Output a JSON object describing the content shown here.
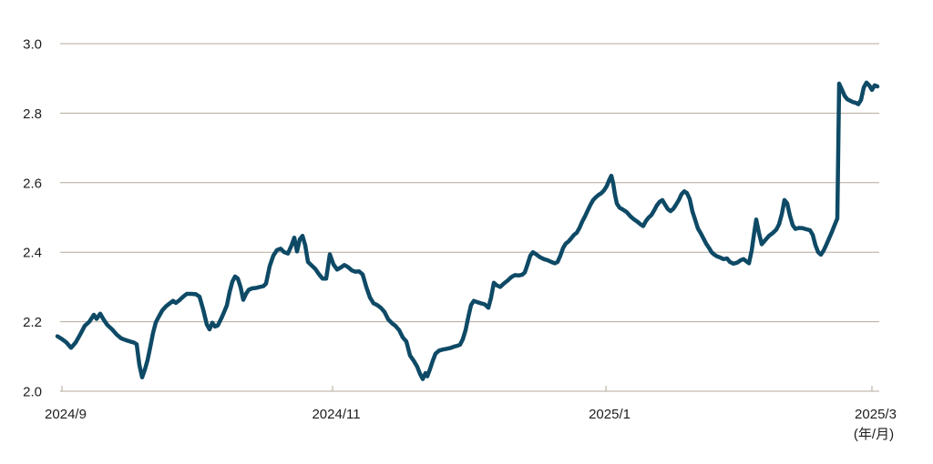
{
  "chart_data": {
    "type": "line",
    "title": "",
    "legend": [],
    "grid": "horizontal",
    "line_color": "#0e4a66",
    "grid_color": "#b5a99b",
    "text_color": "#1d1d1d",
    "background_color": "#ffffff",
    "ylim": [
      2.0,
      3.0
    ],
    "y_ticks": [
      {
        "v": 3.0,
        "label": "3.0"
      },
      {
        "v": 2.8,
        "label": "2.8"
      },
      {
        "v": 2.6,
        "label": "2.6"
      },
      {
        "v": 2.4,
        "label": "2.4"
      },
      {
        "v": 2.2,
        "label": "2.2"
      },
      {
        "v": 2.0,
        "label": "2.0"
      }
    ],
    "x_ticks": [
      {
        "f": 0.0,
        "label": "2024/9"
      },
      {
        "f": 0.3341,
        "label": "2024/11"
      },
      {
        "f": 0.6716,
        "label": "2025/1"
      },
      {
        "f": 1.0,
        "label": "2025/3"
      }
    ],
    "x_axis_note": "(年/月)",
    "points": [
      [
        -0.0056,
        2.158
      ],
      [
        0.0,
        2.15
      ],
      [
        0.0056,
        2.14
      ],
      [
        0.0112,
        2.125
      ],
      [
        0.0169,
        2.14
      ],
      [
        0.0225,
        2.163
      ],
      [
        0.0281,
        2.188
      ],
      [
        0.0337,
        2.2
      ],
      [
        0.0394,
        2.22
      ],
      [
        0.0427,
        2.208
      ],
      [
        0.0472,
        2.223
      ],
      [
        0.0517,
        2.205
      ],
      [
        0.0562,
        2.19
      ],
      [
        0.0619,
        2.178
      ],
      [
        0.0675,
        2.163
      ],
      [
        0.0731,
        2.152
      ],
      [
        0.0787,
        2.147
      ],
      [
        0.0844,
        2.143
      ],
      [
        0.0889,
        2.14
      ],
      [
        0.0922,
        2.135
      ],
      [
        0.0956,
        2.075
      ],
      [
        0.099,
        2.04
      ],
      [
        0.1024,
        2.062
      ],
      [
        0.1057,
        2.09
      ],
      [
        0.1091,
        2.128
      ],
      [
        0.1125,
        2.168
      ],
      [
        0.1159,
        2.198
      ],
      [
        0.1192,
        2.213
      ],
      [
        0.1237,
        2.232
      ],
      [
        0.1282,
        2.244
      ],
      [
        0.1327,
        2.252
      ],
      [
        0.1372,
        2.26
      ],
      [
        0.1406,
        2.254
      ],
      [
        0.1451,
        2.262
      ],
      [
        0.1496,
        2.272
      ],
      [
        0.1541,
        2.28
      ],
      [
        0.1597,
        2.28
      ],
      [
        0.1654,
        2.279
      ],
      [
        0.1699,
        2.272
      ],
      [
        0.1744,
        2.235
      ],
      [
        0.1789,
        2.192
      ],
      [
        0.1822,
        2.178
      ],
      [
        0.1856,
        2.197
      ],
      [
        0.189,
        2.186
      ],
      [
        0.1923,
        2.189
      ],
      [
        0.1968,
        2.21
      ],
      [
        0.2002,
        2.228
      ],
      [
        0.2036,
        2.247
      ],
      [
        0.207,
        2.285
      ],
      [
        0.2103,
        2.315
      ],
      [
        0.2137,
        2.33
      ],
      [
        0.2171,
        2.324
      ],
      [
        0.2205,
        2.3
      ],
      [
        0.2238,
        2.263
      ],
      [
        0.2272,
        2.28
      ],
      [
        0.2306,
        2.292
      ],
      [
        0.2351,
        2.296
      ],
      [
        0.2396,
        2.297
      ],
      [
        0.2441,
        2.3
      ],
      [
        0.2486,
        2.302
      ],
      [
        0.252,
        2.31
      ],
      [
        0.2565,
        2.36
      ],
      [
        0.261,
        2.39
      ],
      [
        0.2655,
        2.406
      ],
      [
        0.27,
        2.41
      ],
      [
        0.2745,
        2.4
      ],
      [
        0.279,
        2.396
      ],
      [
        0.2835,
        2.42
      ],
      [
        0.2868,
        2.442
      ],
      [
        0.2902,
        2.402
      ],
      [
        0.2936,
        2.437
      ],
      [
        0.297,
        2.447
      ],
      [
        0.3003,
        2.42
      ],
      [
        0.3037,
        2.372
      ],
      [
        0.3082,
        2.362
      ],
      [
        0.3127,
        2.352
      ],
      [
        0.3172,
        2.337
      ],
      [
        0.3217,
        2.324
      ],
      [
        0.3262,
        2.324
      ],
      [
        0.3307,
        2.394
      ],
      [
        0.3352,
        2.365
      ],
      [
        0.3397,
        2.35
      ],
      [
        0.3442,
        2.356
      ],
      [
        0.3487,
        2.363
      ],
      [
        0.3532,
        2.357
      ],
      [
        0.3577,
        2.348
      ],
      [
        0.3622,
        2.344
      ],
      [
        0.3667,
        2.345
      ],
      [
        0.3712,
        2.336
      ],
      [
        0.3757,
        2.3
      ],
      [
        0.3802,
        2.27
      ],
      [
        0.3847,
        2.253
      ],
      [
        0.3892,
        2.248
      ],
      [
        0.3937,
        2.24
      ],
      [
        0.3982,
        2.228
      ],
      [
        0.4027,
        2.207
      ],
      [
        0.4072,
        2.196
      ],
      [
        0.4117,
        2.188
      ],
      [
        0.4162,
        2.176
      ],
      [
        0.4207,
        2.155
      ],
      [
        0.4252,
        2.143
      ],
      [
        0.4297,
        2.103
      ],
      [
        0.4342,
        2.088
      ],
      [
        0.4387,
        2.07
      ],
      [
        0.4421,
        2.05
      ],
      [
        0.4454,
        2.035
      ],
      [
        0.4488,
        2.052
      ],
      [
        0.4511,
        2.043
      ],
      [
        0.4545,
        2.065
      ],
      [
        0.4578,
        2.088
      ],
      [
        0.4612,
        2.108
      ],
      [
        0.4657,
        2.117
      ],
      [
        0.4702,
        2.12
      ],
      [
        0.4747,
        2.122
      ],
      [
        0.4792,
        2.124
      ],
      [
        0.4837,
        2.128
      ],
      [
        0.4882,
        2.131
      ],
      [
        0.4916,
        2.134
      ],
      [
        0.4949,
        2.15
      ],
      [
        0.4983,
        2.176
      ],
      [
        0.5017,
        2.214
      ],
      [
        0.5051,
        2.248
      ],
      [
        0.5084,
        2.26
      ],
      [
        0.5129,
        2.256
      ],
      [
        0.5174,
        2.253
      ],
      [
        0.5219,
        2.25
      ],
      [
        0.5264,
        2.24
      ],
      [
        0.5298,
        2.27
      ],
      [
        0.5332,
        2.312
      ],
      [
        0.5366,
        2.305
      ],
      [
        0.5411,
        2.3
      ],
      [
        0.5456,
        2.31
      ],
      [
        0.5501,
        2.318
      ],
      [
        0.5546,
        2.328
      ],
      [
        0.5591,
        2.334
      ],
      [
        0.5636,
        2.333
      ],
      [
        0.5681,
        2.335
      ],
      [
        0.5714,
        2.342
      ],
      [
        0.5748,
        2.365
      ],
      [
        0.5782,
        2.39
      ],
      [
        0.5816,
        2.4
      ],
      [
        0.5861,
        2.393
      ],
      [
        0.5906,
        2.385
      ],
      [
        0.5951,
        2.38
      ],
      [
        0.5996,
        2.377
      ],
      [
        0.6041,
        2.372
      ],
      [
        0.6086,
        2.368
      ],
      [
        0.6119,
        2.372
      ],
      [
        0.6153,
        2.39
      ],
      [
        0.6187,
        2.412
      ],
      [
        0.6221,
        2.425
      ],
      [
        0.6254,
        2.431
      ],
      [
        0.6288,
        2.44
      ],
      [
        0.6322,
        2.45
      ],
      [
        0.6355,
        2.456
      ],
      [
        0.6389,
        2.47
      ],
      [
        0.6423,
        2.488
      ],
      [
        0.6457,
        2.503
      ],
      [
        0.649,
        2.52
      ],
      [
        0.6524,
        2.536
      ],
      [
        0.6558,
        2.55
      ],
      [
        0.6591,
        2.558
      ],
      [
        0.6625,
        2.565
      ],
      [
        0.6659,
        2.57
      ],
      [
        0.6693,
        2.578
      ],
      [
        0.6726,
        2.59
      ],
      [
        0.676,
        2.61
      ],
      [
        0.6783,
        2.62
      ],
      [
        0.6805,
        2.598
      ],
      [
        0.6828,
        2.565
      ],
      [
        0.685,
        2.54
      ],
      [
        0.6884,
        2.528
      ],
      [
        0.6929,
        2.522
      ],
      [
        0.6974,
        2.515
      ],
      [
        0.7019,
        2.503
      ],
      [
        0.7064,
        2.494
      ],
      [
        0.7109,
        2.487
      ],
      [
        0.7143,
        2.48
      ],
      [
        0.7176,
        2.475
      ],
      [
        0.721,
        2.49
      ],
      [
        0.7244,
        2.5
      ],
      [
        0.7278,
        2.507
      ],
      [
        0.7311,
        2.52
      ],
      [
        0.7345,
        2.535
      ],
      [
        0.7379,
        2.545
      ],
      [
        0.7413,
        2.55
      ],
      [
        0.7446,
        2.537
      ],
      [
        0.748,
        2.524
      ],
      [
        0.7514,
        2.518
      ],
      [
        0.7548,
        2.525
      ],
      [
        0.7581,
        2.537
      ],
      [
        0.7615,
        2.55
      ],
      [
        0.7649,
        2.567
      ],
      [
        0.7683,
        2.575
      ],
      [
        0.7716,
        2.57
      ],
      [
        0.775,
        2.553
      ],
      [
        0.7784,
        2.517
      ],
      [
        0.7818,
        2.493
      ],
      [
        0.7851,
        2.468
      ],
      [
        0.7885,
        2.455
      ],
      [
        0.7919,
        2.44
      ],
      [
        0.7953,
        2.425
      ],
      [
        0.7986,
        2.413
      ],
      [
        0.802,
        2.4
      ],
      [
        0.8054,
        2.393
      ],
      [
        0.8088,
        2.388
      ],
      [
        0.8121,
        2.385
      ],
      [
        0.8166,
        2.38
      ],
      [
        0.8211,
        2.382
      ],
      [
        0.8245,
        2.372
      ],
      [
        0.829,
        2.367
      ],
      [
        0.8335,
        2.37
      ],
      [
        0.838,
        2.377
      ],
      [
        0.8414,
        2.38
      ],
      [
        0.8448,
        2.374
      ],
      [
        0.8481,
        2.368
      ],
      [
        0.8515,
        2.405
      ],
      [
        0.8549,
        2.46
      ],
      [
        0.8571,
        2.494
      ],
      [
        0.8605,
        2.455
      ],
      [
        0.8639,
        2.423
      ],
      [
        0.8684,
        2.435
      ],
      [
        0.8729,
        2.447
      ],
      [
        0.8774,
        2.455
      ],
      [
        0.8819,
        2.465
      ],
      [
        0.8853,
        2.48
      ],
      [
        0.8887,
        2.51
      ],
      [
        0.892,
        2.55
      ],
      [
        0.8954,
        2.54
      ],
      [
        0.8988,
        2.505
      ],
      [
        0.9021,
        2.478
      ],
      [
        0.9055,
        2.467
      ],
      [
        0.91,
        2.47
      ],
      [
        0.9145,
        2.469
      ],
      [
        0.919,
        2.466
      ],
      [
        0.9235,
        2.463
      ],
      [
        0.9269,
        2.45
      ],
      [
        0.9303,
        2.42
      ],
      [
        0.9336,
        2.4
      ],
      [
        0.937,
        2.393
      ],
      [
        0.9404,
        2.405
      ],
      [
        0.9438,
        2.422
      ],
      [
        0.9471,
        2.44
      ],
      [
        0.9505,
        2.458
      ],
      [
        0.9539,
        2.478
      ],
      [
        0.9573,
        2.497
      ],
      [
        0.9595,
        2.885
      ],
      [
        0.9629,
        2.868
      ],
      [
        0.9663,
        2.85
      ],
      [
        0.9696,
        2.84
      ],
      [
        0.973,
        2.836
      ],
      [
        0.9764,
        2.832
      ],
      [
        0.9798,
        2.83
      ],
      [
        0.9831,
        2.826
      ],
      [
        0.9865,
        2.838
      ],
      [
        0.9899,
        2.874
      ],
      [
        0.9933,
        2.888
      ],
      [
        0.9966,
        2.88
      ],
      [
        1.0,
        2.867
      ],
      [
        1.0034,
        2.88
      ],
      [
        1.0067,
        2.877
      ]
    ]
  }
}
